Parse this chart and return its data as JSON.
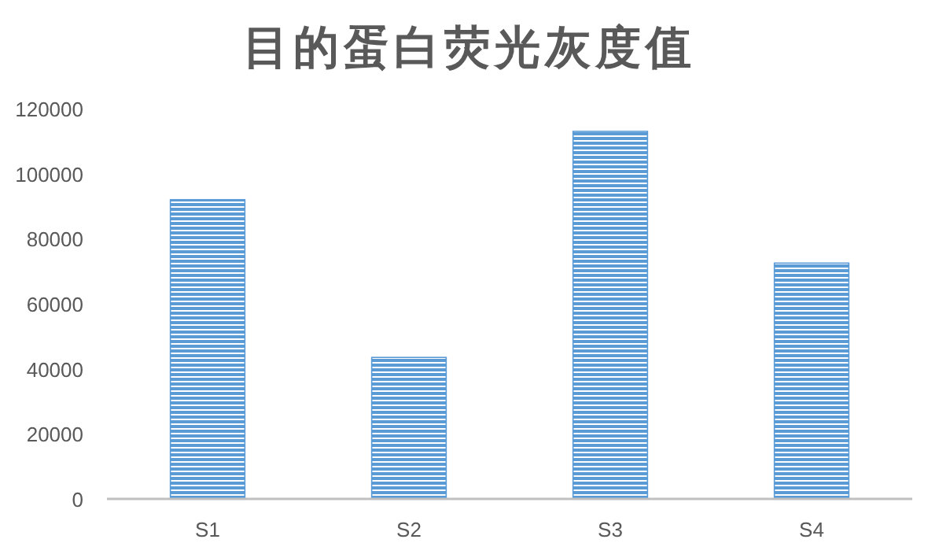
{
  "chart_data": {
    "type": "bar",
    "title": "目的蛋白荧光灰度值",
    "categories": [
      "S1",
      "S2",
      "S3",
      "S4"
    ],
    "values": [
      92000,
      43500,
      113000,
      72500
    ],
    "color": "#5b9bd5",
    "ylim": [
      0,
      120000
    ],
    "yticks": [
      0,
      20000,
      40000,
      60000,
      80000,
      100000,
      120000
    ],
    "grid": false
  }
}
